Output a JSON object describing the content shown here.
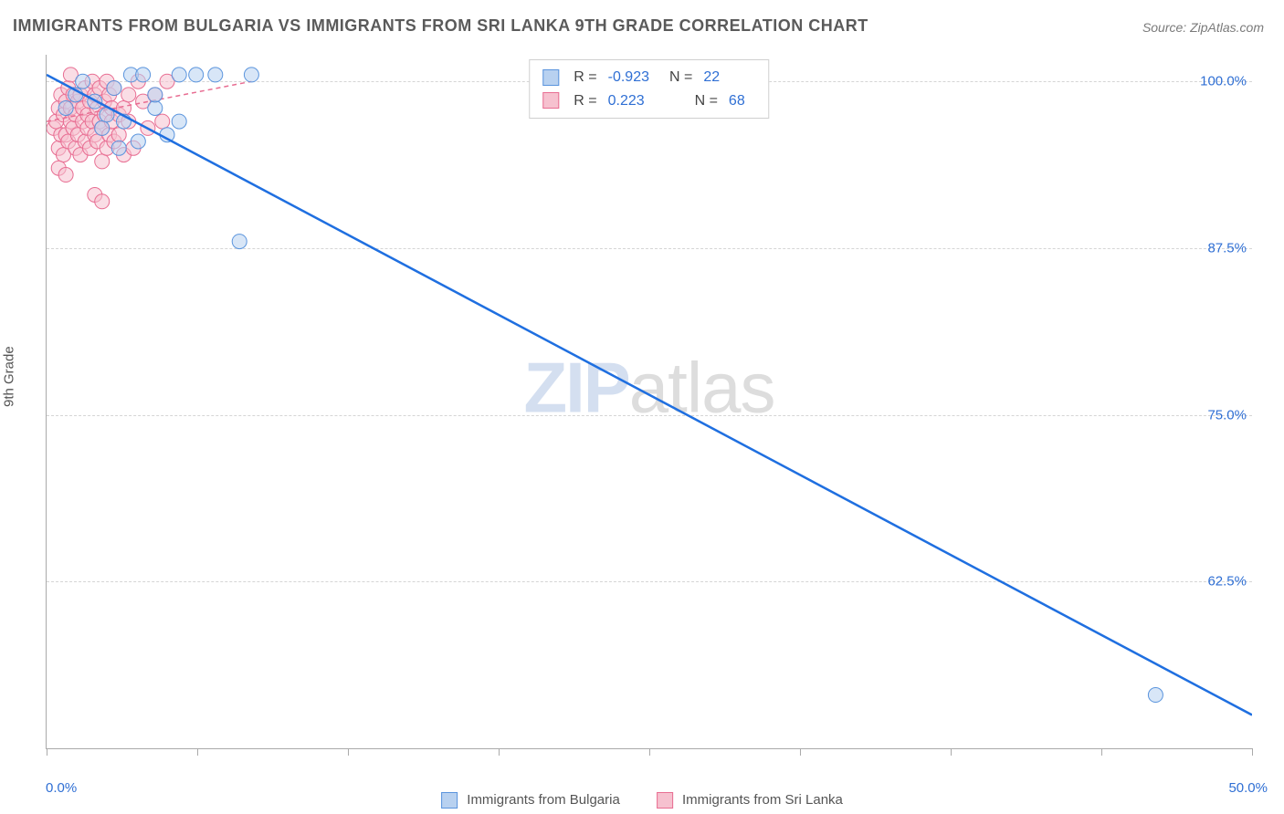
{
  "title": "IMMIGRANTS FROM BULGARIA VS IMMIGRANTS FROM SRI LANKA 9TH GRADE CORRELATION CHART",
  "source_label": "Source: ZipAtlas.com",
  "watermark": {
    "left": "ZIP",
    "right": "atlas"
  },
  "ylabel": "9th Grade",
  "chart": {
    "type": "scatter",
    "xlim": [
      0,
      50
    ],
    "ylim": [
      50,
      102
    ],
    "x_ticks": [
      0,
      6.25,
      12.5,
      18.75,
      25,
      31.25,
      37.5,
      43.75,
      50
    ],
    "x_tick_labels": {
      "0": "0.0%",
      "50": "50.0%"
    },
    "y_ticks": [
      62.5,
      75.0,
      87.5,
      100.0
    ],
    "y_tick_labels": [
      "62.5%",
      "75.0%",
      "87.5%",
      "100.0%"
    ],
    "grid_color": "#d5d5d5",
    "axis_color": "#aaaaaa",
    "background_color": "#ffffff",
    "series": [
      {
        "name": "Immigrants from Bulgaria",
        "color_fill": "#b8d1f0",
        "color_stroke": "#5a94dd",
        "trend_color": "#1f6fe0",
        "trend_width": 2.5,
        "trend_dash": "none",
        "marker_radius": 8,
        "marker_opacity": 0.55,
        "R": "-0.923",
        "N": "22",
        "trend": {
          "x1": 0,
          "y1": 100.5,
          "x2": 50,
          "y2": 52.5
        },
        "points": [
          [
            0.8,
            98.0
          ],
          [
            1.2,
            99.0
          ],
          [
            1.5,
            100.0
          ],
          [
            2.0,
            98.5
          ],
          [
            2.3,
            96.5
          ],
          [
            2.8,
            99.5
          ],
          [
            3.2,
            97.0
          ],
          [
            3.5,
            100.5
          ],
          [
            3.8,
            95.5
          ],
          [
            4.5,
            98.0
          ],
          [
            4.5,
            99.0
          ],
          [
            5.0,
            96.0
          ],
          [
            5.5,
            100.5
          ],
          [
            5.5,
            97.0
          ],
          [
            6.2,
            100.5
          ],
          [
            7.0,
            100.5
          ],
          [
            4.0,
            100.5
          ],
          [
            3.0,
            95.0
          ],
          [
            2.5,
            97.5
          ],
          [
            8.5,
            100.5
          ],
          [
            8.0,
            88.0
          ],
          [
            46.0,
            54.0
          ]
        ]
      },
      {
        "name": "Immigrants from Sri Lanka",
        "color_fill": "#f6c1cf",
        "color_stroke": "#e86d92",
        "trend_color": "#e86d92",
        "trend_width": 1.5,
        "trend_dash": "5,4",
        "marker_radius": 8,
        "marker_opacity": 0.55,
        "R": "0.223",
        "N": "68",
        "trend": {
          "x1": 0,
          "y1": 97.0,
          "x2": 8.5,
          "y2": 100.0
        },
        "points": [
          [
            0.3,
            96.5
          ],
          [
            0.4,
            97.0
          ],
          [
            0.5,
            95.0
          ],
          [
            0.5,
            98.0
          ],
          [
            0.6,
            96.0
          ],
          [
            0.6,
            99.0
          ],
          [
            0.7,
            97.5
          ],
          [
            0.7,
            94.5
          ],
          [
            0.8,
            98.5
          ],
          [
            0.8,
            96.0
          ],
          [
            0.9,
            99.5
          ],
          [
            0.9,
            95.5
          ],
          [
            1.0,
            97.0
          ],
          [
            1.0,
            98.0
          ],
          [
            1.1,
            96.5
          ],
          [
            1.1,
            99.0
          ],
          [
            1.2,
            95.0
          ],
          [
            1.2,
            97.5
          ],
          [
            1.3,
            98.5
          ],
          [
            1.3,
            96.0
          ],
          [
            1.4,
            99.0
          ],
          [
            1.4,
            94.5
          ],
          [
            1.5,
            97.0
          ],
          [
            1.5,
            98.0
          ],
          [
            1.6,
            95.5
          ],
          [
            1.6,
            99.5
          ],
          [
            1.7,
            96.5
          ],
          [
            1.7,
            97.5
          ],
          [
            1.8,
            98.5
          ],
          [
            1.8,
            95.0
          ],
          [
            1.9,
            100.0
          ],
          [
            1.9,
            97.0
          ],
          [
            2.0,
            96.0
          ],
          [
            2.0,
            99.0
          ],
          [
            2.1,
            95.5
          ],
          [
            2.1,
            98.0
          ],
          [
            2.2,
            97.0
          ],
          [
            2.2,
            99.5
          ],
          [
            2.3,
            96.5
          ],
          [
            2.3,
            94.0
          ],
          [
            2.4,
            98.5
          ],
          [
            2.4,
            97.5
          ],
          [
            2.5,
            95.0
          ],
          [
            2.5,
            100.0
          ],
          [
            2.6,
            96.0
          ],
          [
            2.6,
            99.0
          ],
          [
            2.7,
            97.0
          ],
          [
            2.7,
            98.0
          ],
          [
            2.8,
            95.5
          ],
          [
            2.8,
            99.5
          ],
          [
            3.0,
            97.5
          ],
          [
            3.0,
            96.0
          ],
          [
            3.2,
            98.0
          ],
          [
            3.2,
            94.5
          ],
          [
            3.4,
            99.0
          ],
          [
            3.4,
            97.0
          ],
          [
            3.6,
            95.0
          ],
          [
            3.8,
            100.0
          ],
          [
            4.0,
            98.5
          ],
          [
            4.2,
            96.5
          ],
          [
            4.5,
            99.0
          ],
          [
            4.8,
            97.0
          ],
          [
            5.0,
            100.0
          ],
          [
            2.0,
            91.5
          ],
          [
            2.3,
            91.0
          ],
          [
            0.5,
            93.5
          ],
          [
            0.8,
            93.0
          ],
          [
            1.0,
            100.5
          ]
        ]
      }
    ]
  },
  "legend_bottom": [
    {
      "label": "Immigrants from Bulgaria",
      "fill": "#b8d1f0",
      "stroke": "#5a94dd"
    },
    {
      "label": "Immigrants from Sri Lanka",
      "fill": "#f6c1cf",
      "stroke": "#e86d92"
    }
  ]
}
